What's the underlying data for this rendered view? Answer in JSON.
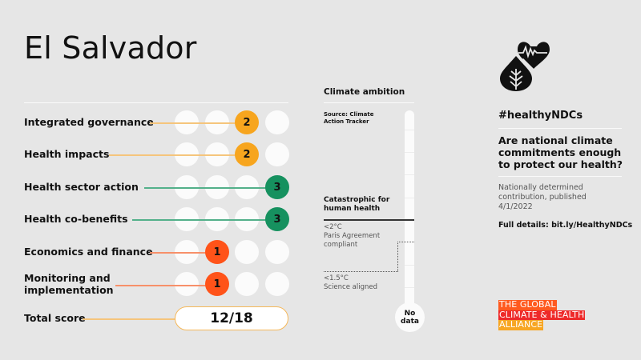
{
  "header": {
    "title": "El Salvador"
  },
  "colors": {
    "background": "#e6e6e6",
    "score_orange": "#f7a51e",
    "score_green": "#16915f",
    "score_red": "#ff5319",
    "empty_dot": "#fbfbfb"
  },
  "scorecard": {
    "max_per_category": 3,
    "rows": [
      {
        "label": "Integrated governance",
        "score": "2",
        "position": 3,
        "color": "#f7a51e",
        "line": "#f5c57c"
      },
      {
        "label": "Health impacts",
        "score": "2",
        "position": 3,
        "color": "#f7a51e",
        "line": "#f5c57c"
      },
      {
        "label": "Health sector action",
        "score": "3",
        "position": 4,
        "color": "#16915f",
        "line": "#53b08a"
      },
      {
        "label": "Health co-benefits",
        "score": "3",
        "position": 4,
        "color": "#16915f",
        "line": "#53b08a"
      },
      {
        "label": "Economics and finance",
        "score": "1",
        "position": 2,
        "color": "#ff5319",
        "line": "#f7906a"
      },
      {
        "label": "Monitoring and implementation",
        "score": "1",
        "position": 2,
        "color": "#ff5319",
        "line": "#f7906a"
      }
    ],
    "total": {
      "label": "Total score",
      "value": "12/18"
    }
  },
  "climate_ambition": {
    "title": "Climate ambition",
    "source": "Source: Climate Action Tracker",
    "catastrophic": "Catastrophic for human health",
    "paris_threshold": "<2°C",
    "paris_label": "Paris Agreement compliant",
    "science_threshold": "<1.5°C",
    "science_label": "Science aligned",
    "rating": "No data"
  },
  "sidebar": {
    "icon": "heart-pulse-leaf-icon",
    "hashtag": "#healthyNDCs",
    "question": "Are national climate commitments enough to protect our health?",
    "published": "Nationally determined contribution, published 4/1/2022",
    "details": "Full details: bit.ly/HealthyNDCs"
  },
  "logo": {
    "lines": [
      "THE GLOBAL",
      "CLIMATE & HEALTH",
      "ALLIANCE"
    ],
    "colors": [
      "#ff5a1f",
      "#ee2a2a",
      "#f7a623"
    ]
  }
}
